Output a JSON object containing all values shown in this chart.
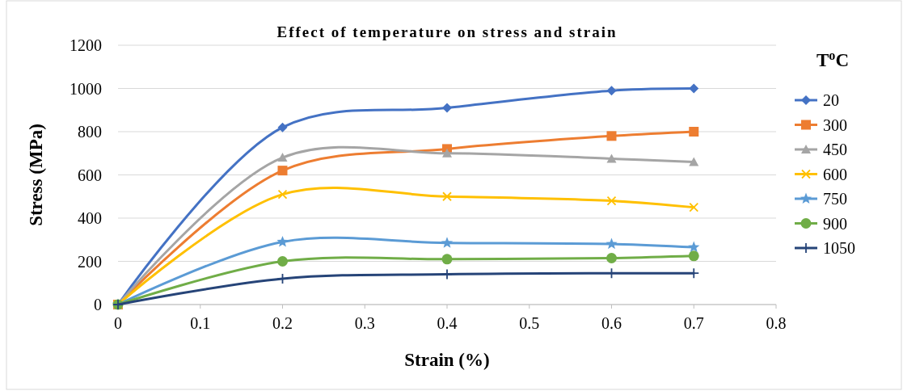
{
  "chart_data": {
    "type": "line",
    "title": "Effect of temperature on stress and strain",
    "xlabel": "Strain (%)",
    "ylabel": "Stress (MPa)",
    "legend_title": "T$^{o}$C",
    "x": [
      0,
      0.2,
      0.4,
      0.6,
      0.7
    ],
    "xlim": [
      0,
      0.8
    ],
    "xticks": [
      0,
      0.1,
      0.2,
      0.3,
      0.4,
      0.5,
      0.6,
      0.7,
      0.8
    ],
    "ylim": [
      0,
      1200
    ],
    "yticks": [
      0,
      200,
      400,
      600,
      800,
      1000,
      1200
    ],
    "grid": "y",
    "legend": "right",
    "series": [
      {
        "name": "20",
        "color": "#4472c4",
        "marker": "diamond",
        "values": [
          0,
          820,
          910,
          990,
          1000
        ]
      },
      {
        "name": "300",
        "color": "#ed7d31",
        "marker": "square",
        "values": [
          0,
          620,
          720,
          780,
          800
        ]
      },
      {
        "name": "450",
        "color": "#a5a5a5",
        "marker": "triangle",
        "values": [
          0,
          680,
          700,
          675,
          660
        ]
      },
      {
        "name": "600",
        "color": "#ffc000",
        "marker": "x",
        "values": [
          0,
          510,
          500,
          480,
          450
        ]
      },
      {
        "name": "750",
        "color": "#5b9bd5",
        "marker": "star",
        "values": [
          0,
          290,
          285,
          280,
          265
        ]
      },
      {
        "name": "900",
        "color": "#70ad47",
        "marker": "circle",
        "values": [
          0,
          200,
          210,
          215,
          225
        ]
      },
      {
        "name": "1050",
        "color": "#264478",
        "marker": "cross",
        "values": [
          0,
          120,
          140,
          145,
          145
        ]
      }
    ]
  }
}
